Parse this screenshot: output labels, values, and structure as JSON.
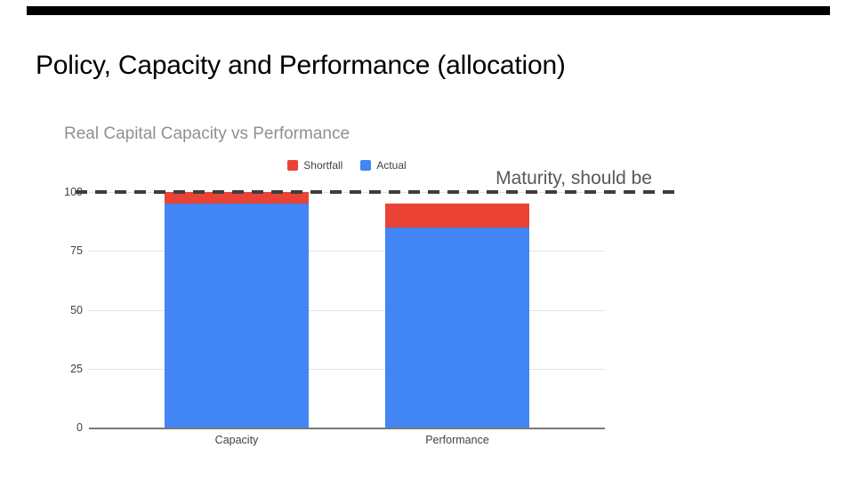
{
  "slide": {
    "title": "Policy, Capacity and Performance (allocation)",
    "top_bar_color": "#000000"
  },
  "chart_data": {
    "type": "bar",
    "stacked": true,
    "title": "Real Capital Capacity vs Performance",
    "title_color": "#909090",
    "categories": [
      "Capacity",
      "Performance"
    ],
    "series": [
      {
        "name": "Shortfall",
        "color": "#EA4335",
        "values": [
          5,
          10
        ]
      },
      {
        "name": "Actual",
        "color": "#4285F4",
        "values": [
          95,
          85
        ]
      }
    ],
    "stack_totals": [
      100,
      95
    ],
    "y_ticks": [
      0,
      25,
      50,
      75,
      100
    ],
    "ylim": [
      0,
      100
    ],
    "grid": true,
    "legend_position": "top-center",
    "xlabel": "",
    "ylabel": "",
    "annotation": {
      "text": "Maturity, should be",
      "value": 100,
      "line_style": "dashed",
      "line_color": "#3d3d3d",
      "text_color": "#595959"
    }
  }
}
